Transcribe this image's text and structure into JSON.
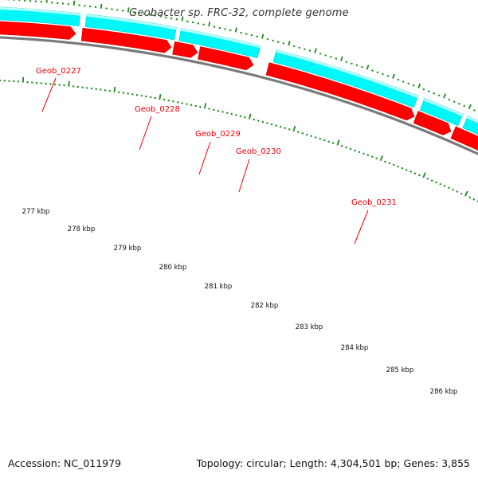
{
  "header": {
    "title": "Geobacter sp. FRC-32, complete genome"
  },
  "footer": {
    "accession": "Accession: NC_011979",
    "summary": "Topology: circular; Length: 4,304,501 bp; Genes: 3,855"
  },
  "colors": {
    "cds_track": "#00f7f7",
    "gene_track": "#ff0000",
    "backbone": "#7a7a7a",
    "ticks": "#1c8a1c",
    "gene_label": "#e8000b"
  },
  "gene_labels": [
    {
      "text": "Geob_0227"
    },
    {
      "text": "Geob_0228"
    },
    {
      "text": "Geob_0229"
    },
    {
      "text": "Geob_0230"
    },
    {
      "text": "Geob_0231"
    }
  ],
  "scale_labels": [
    "277 kbp",
    "278 kbp",
    "279 kbp",
    "280 kbp",
    "281 kbp",
    "282 kbp",
    "283 kbp",
    "284 kbp",
    "285 kbp",
    "286 kbp"
  ]
}
